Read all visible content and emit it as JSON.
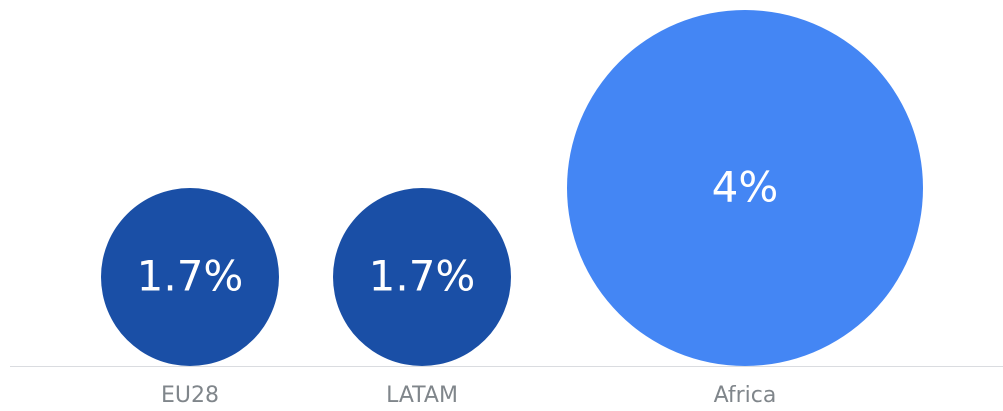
{
  "chart_data": {
    "type": "bubble",
    "categories": [
      "EU28",
      "LATAM",
      "Africa"
    ],
    "values": [
      1.7,
      1.7,
      4
    ],
    "value_labels": [
      "1.7%",
      "1.7%",
      "4%"
    ],
    "colors": [
      "#1a4fa6",
      "#1a4fa6",
      "#4486f4"
    ]
  }
}
